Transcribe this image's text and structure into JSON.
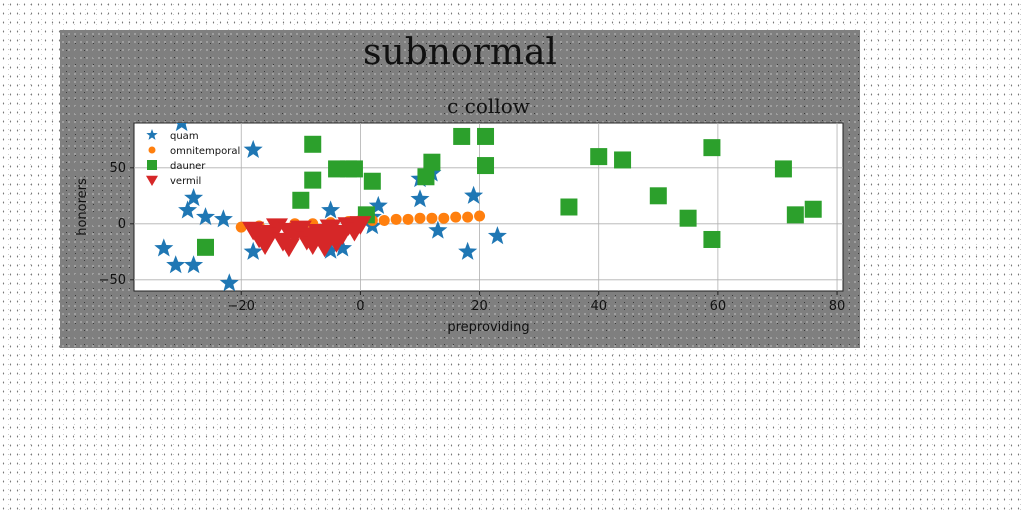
{
  "chart_data": {
    "type": "scatter",
    "suptitle": "subnormal",
    "title": "c collow",
    "xlabel": "preproviding",
    "ylabel": "honorers",
    "xlim": [
      -38,
      81
    ],
    "ylim": [
      -60,
      90
    ],
    "xticks": [
      -20,
      0,
      20,
      40,
      60,
      80
    ],
    "xtick_labels": [
      "−20",
      "0",
      "20",
      "40",
      "60",
      "80"
    ],
    "yticks": [
      -50,
      0,
      50
    ],
    "ytick_labels": [
      "−50",
      "0",
      "50"
    ],
    "grid": true,
    "legend_position": "upper-left",
    "series": [
      {
        "name": "quam",
        "marker": "star",
        "color": "#1f77b4",
        "points": [
          [
            -30,
            90
          ],
          [
            -18,
            66
          ],
          [
            -33,
            -22
          ],
          [
            -31,
            -37
          ],
          [
            -29,
            12
          ],
          [
            -28,
            23
          ],
          [
            -28,
            -37
          ],
          [
            -26,
            6
          ],
          [
            -23,
            4
          ],
          [
            -22,
            -53
          ],
          [
            -18,
            -25
          ],
          [
            -5,
            12
          ],
          [
            -5,
            -24
          ],
          [
            -3,
            -22
          ],
          [
            2,
            6
          ],
          [
            3,
            16
          ],
          [
            2,
            -2
          ],
          [
            10,
            40
          ],
          [
            10,
            22
          ],
          [
            12,
            45
          ],
          [
            13,
            -6
          ],
          [
            18,
            -25
          ],
          [
            19,
            25
          ],
          [
            23,
            -11
          ]
        ]
      },
      {
        "name": "omnitemporal",
        "marker": "circle",
        "color": "#ff7f0e",
        "points": [
          [
            -20,
            -3
          ],
          [
            -17,
            -2
          ],
          [
            -14,
            -1
          ],
          [
            -11,
            0
          ],
          [
            -8,
            0
          ],
          [
            -5,
            1
          ],
          [
            -2,
            2
          ],
          [
            0,
            3
          ],
          [
            2,
            3
          ],
          [
            4,
            3
          ],
          [
            6,
            4
          ],
          [
            8,
            4
          ],
          [
            10,
            5
          ],
          [
            12,
            5
          ],
          [
            14,
            5
          ],
          [
            16,
            6
          ],
          [
            18,
            6
          ],
          [
            20,
            7
          ]
        ]
      },
      {
        "name": "dauner",
        "marker": "square",
        "color": "#2ca02c",
        "points": [
          [
            -26,
            -21
          ],
          [
            -10,
            21
          ],
          [
            -8,
            71
          ],
          [
            -8,
            39
          ],
          [
            -4,
            49
          ],
          [
            -2,
            49
          ],
          [
            -1,
            49
          ],
          [
            2,
            38
          ],
          [
            1,
            8
          ],
          [
            11,
            42
          ],
          [
            12,
            55
          ],
          [
            17,
            78
          ],
          [
            21,
            78
          ],
          [
            21,
            52
          ],
          [
            35,
            15
          ],
          [
            40,
            60
          ],
          [
            44,
            57
          ],
          [
            50,
            25
          ],
          [
            55,
            5
          ],
          [
            59,
            -14
          ],
          [
            59,
            68
          ],
          [
            71,
            49
          ],
          [
            73,
            8
          ],
          [
            76,
            13
          ]
        ]
      },
      {
        "name": "vermil",
        "marker": "triangle-down",
        "color": "#d62728",
        "points": [
          [
            -18,
            -5
          ],
          [
            -17,
            -12
          ],
          [
            -16,
            -18
          ],
          [
            -15,
            -8
          ],
          [
            -14,
            -2
          ],
          [
            -13,
            -15
          ],
          [
            -12,
            -20
          ],
          [
            -11,
            -9
          ],
          [
            -10,
            -4
          ],
          [
            -9,
            -14
          ],
          [
            -8,
            -18
          ],
          [
            -7,
            -7
          ],
          [
            -6,
            -12
          ],
          [
            -5,
            -3
          ],
          [
            -4,
            -16
          ],
          [
            -3,
            -9
          ],
          [
            -2,
            -1
          ],
          [
            -1,
            -6
          ],
          [
            0,
            0
          ],
          [
            -12,
            -6
          ],
          [
            -8,
            -10
          ],
          [
            -4,
            -8
          ],
          [
            -16,
            -10
          ],
          [
            -6,
            -20
          ]
        ]
      }
    ]
  }
}
